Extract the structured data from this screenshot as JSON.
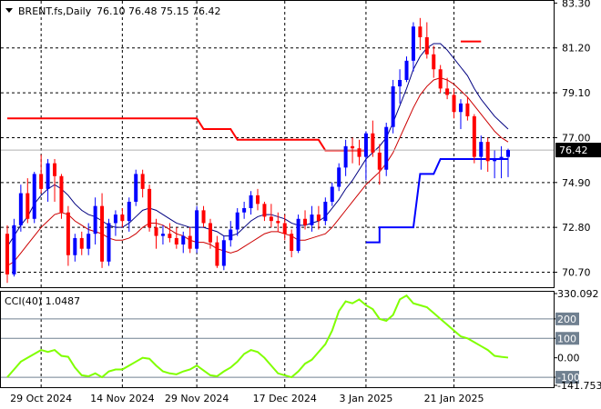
{
  "chart_data": [
    {
      "type": "candlestick",
      "title": "BRENT.fs,Daily",
      "ohlc_text": "76.10 76.48 75.15 76.42",
      "last_price": "76.42",
      "y_ticks": [
        "83.30",
        "81.20",
        "79.10",
        "77.00",
        "74.90",
        "72.80",
        "70.70"
      ],
      "y_tick_values": [
        83.3,
        81.2,
        79.1,
        77.0,
        74.9,
        72.8,
        70.7
      ],
      "ylim": [
        70.0,
        83.4
      ],
      "x_ticks": [
        "29 Oct 2024",
        "14 Nov 2024",
        "29 Nov 2024",
        "17 Dec 2024",
        "3 Jan 2025",
        "21 Jan 2025"
      ],
      "x_tick_index": [
        5,
        17,
        28,
        41,
        53,
        66
      ],
      "candles": [
        [
          72.5,
          72.9,
          70.2,
          70.6
        ],
        [
          70.6,
          73.2,
          70.5,
          72.9
        ],
        [
          72.9,
          74.8,
          72.6,
          74.4
        ],
        [
          74.4,
          75.1,
          73.0,
          73.2
        ],
        [
          73.2,
          75.4,
          73.0,
          75.3
        ],
        [
          75.3,
          76.2,
          74.4,
          74.6
        ],
        [
          74.6,
          76.0,
          74.0,
          75.8
        ],
        [
          75.8,
          76.0,
          74.0,
          75.2
        ],
        [
          75.2,
          75.3,
          73.2,
          73.5
        ],
        [
          73.5,
          73.8,
          71.0,
          71.5
        ],
        [
          71.5,
          72.5,
          71.2,
          72.3
        ],
        [
          72.3,
          72.6,
          71.5,
          71.8
        ],
        [
          71.8,
          73.0,
          71.5,
          72.5
        ],
        [
          72.5,
          74.2,
          72.0,
          73.8
        ],
        [
          73.8,
          74.4,
          70.9,
          71.2
        ],
        [
          71.2,
          73.2,
          71.0,
          73.0
        ],
        [
          73.0,
          73.6,
          72.4,
          73.4
        ],
        [
          73.4,
          73.7,
          72.8,
          73.1
        ],
        [
          73.1,
          74.2,
          72.6,
          74.0
        ],
        [
          74.0,
          75.5,
          73.8,
          75.3
        ],
        [
          75.3,
          75.5,
          74.2,
          74.6
        ],
        [
          74.6,
          74.8,
          72.6,
          72.8
        ],
        [
          72.8,
          73.2,
          71.8,
          72.4
        ],
        [
          72.4,
          72.9,
          72.0,
          72.5
        ],
        [
          72.5,
          73.0,
          72.1,
          72.3
        ],
        [
          72.3,
          72.8,
          71.8,
          72.0
        ],
        [
          72.0,
          72.6,
          71.6,
          72.4
        ],
        [
          72.4,
          72.8,
          71.6,
          71.8
        ],
        [
          71.8,
          73.8,
          71.6,
          73.6
        ],
        [
          73.6,
          73.8,
          72.8,
          73.0
        ],
        [
          73.0,
          73.2,
          71.8,
          72.1
        ],
        [
          72.1,
          72.4,
          70.9,
          71.0
        ],
        [
          71.0,
          72.4,
          70.8,
          72.2
        ],
        [
          72.2,
          73.1,
          71.9,
          72.7
        ],
        [
          72.7,
          73.7,
          72.4,
          73.5
        ],
        [
          73.5,
          74.0,
          73.2,
          73.7
        ],
        [
          73.7,
          74.5,
          73.4,
          74.3
        ],
        [
          74.3,
          74.6,
          73.6,
          73.9
        ],
        [
          73.9,
          74.0,
          73.1,
          73.3
        ],
        [
          73.3,
          73.9,
          72.8,
          73.1
        ],
        [
          73.1,
          73.5,
          72.6,
          73.0
        ],
        [
          73.0,
          73.4,
          72.2,
          72.5
        ],
        [
          72.5,
          72.7,
          71.4,
          71.7
        ],
        [
          71.7,
          73.4,
          71.6,
          73.2
        ],
        [
          73.2,
          73.6,
          72.7,
          72.9
        ],
        [
          72.9,
          73.8,
          72.6,
          73.4
        ],
        [
          73.4,
          73.8,
          72.7,
          73.1
        ],
        [
          73.1,
          74.2,
          72.9,
          74.0
        ],
        [
          74.0,
          74.9,
          73.8,
          74.7
        ],
        [
          74.7,
          75.8,
          74.5,
          75.6
        ],
        [
          75.6,
          76.9,
          75.2,
          76.6
        ],
        [
          76.6,
          77.0,
          75.8,
          76.5
        ],
        [
          76.5,
          76.9,
          75.7,
          76.1
        ],
        [
          76.1,
          77.3,
          75.0,
          77.2
        ],
        [
          77.2,
          77.8,
          76.1,
          76.3
        ],
        [
          76.3,
          76.7,
          74.8,
          75.5
        ],
        [
          75.5,
          77.7,
          75.2,
          77.5
        ],
        [
          77.5,
          79.7,
          77.2,
          79.4
        ],
        [
          79.4,
          80.2,
          78.6,
          79.7
        ],
        [
          79.7,
          80.8,
          79.6,
          80.6
        ],
        [
          80.6,
          82.4,
          80.1,
          82.2
        ],
        [
          82.2,
          82.6,
          81.1,
          81.7
        ],
        [
          81.7,
          82.4,
          80.7,
          80.9
        ],
        [
          80.9,
          81.3,
          79.8,
          80.2
        ],
        [
          80.2,
          80.4,
          79.1,
          79.3
        ],
        [
          79.3,
          79.8,
          78.8,
          79.0
        ],
        [
          79.0,
          79.3,
          77.9,
          78.2
        ],
        [
          78.2,
          78.8,
          77.4,
          78.6
        ],
        [
          78.6,
          78.9,
          77.8,
          78.0
        ],
        [
          78.0,
          78.1,
          75.8,
          76.1
        ],
        [
          76.1,
          77.1,
          75.5,
          76.8
        ],
        [
          76.8,
          77.0,
          75.4,
          75.9
        ],
        [
          75.9,
          76.4,
          75.1,
          76.0
        ],
        [
          76.0,
          76.6,
          75.1,
          76.1
        ],
        [
          76.1,
          76.48,
          75.15,
          76.42
        ]
      ],
      "ma_blue": [
        71.9,
        72.4,
        72.9,
        73.3,
        73.9,
        74.3,
        74.6,
        74.8,
        74.6,
        74.3,
        73.9,
        73.6,
        73.4,
        73.3,
        73.1,
        72.9,
        72.8,
        72.8,
        73.0,
        73.3,
        73.6,
        73.7,
        73.6,
        73.4,
        73.2,
        73.0,
        72.9,
        72.8,
        72.8,
        72.8,
        72.7,
        72.6,
        72.4,
        72.4,
        72.5,
        72.8,
        73.1,
        73.3,
        73.4,
        73.4,
        73.3,
        73.2,
        73.0,
        72.9,
        72.9,
        73.0,
        73.1,
        73.3,
        73.7,
        74.1,
        74.6,
        75.0,
        75.5,
        76.0,
        76.3,
        76.6,
        77.0,
        77.7,
        78.5,
        79.3,
        80.2,
        80.8,
        81.2,
        81.4,
        81.4,
        81.1,
        80.7,
        80.3,
        79.9,
        79.3,
        78.8,
        78.4,
        78.0,
        77.7,
        77.4
      ],
      "ma_red": [
        71.0,
        71.2,
        71.6,
        72.0,
        72.4,
        72.8,
        73.1,
        73.4,
        73.5,
        73.4,
        73.1,
        72.9,
        72.7,
        72.6,
        72.5,
        72.3,
        72.2,
        72.2,
        72.3,
        72.5,
        72.8,
        73.0,
        73.0,
        72.9,
        72.7,
        72.5,
        72.4,
        72.2,
        72.1,
        72.1,
        72.0,
        71.8,
        71.7,
        71.6,
        71.7,
        71.9,
        72.1,
        72.3,
        72.5,
        72.6,
        72.6,
        72.5,
        72.4,
        72.2,
        72.2,
        72.3,
        72.4,
        72.5,
        72.8,
        73.2,
        73.6,
        74.0,
        74.4,
        74.8,
        75.1,
        75.4,
        75.8,
        76.3,
        77.0,
        77.7,
        78.4,
        79.0,
        79.4,
        79.7,
        79.8,
        79.7,
        79.5,
        79.2,
        78.9,
        78.5,
        78.1,
        77.7,
        77.3,
        77.0,
        76.8
      ],
      "stop_red_upper": [
        {
          "from": 0,
          "to": 28,
          "value": 77.9
        },
        {
          "from": 29,
          "to": 33,
          "value": 77.4
        },
        {
          "from": 34,
          "to": 46,
          "value": 76.9
        },
        {
          "from": 47,
          "to": 53,
          "value": 76.4
        }
      ],
      "stop_red_late": [
        {
          "from": 67,
          "to": 70,
          "value": 81.5
        }
      ],
      "stop_blue": [
        {
          "from": 53,
          "to": 55,
          "value": 72.1
        },
        {
          "from": 55,
          "to": 60,
          "value": 72.8
        },
        {
          "from": 61,
          "to": 63,
          "value": 75.3
        },
        {
          "from": 64,
          "to": 74,
          "value": 76.0
        }
      ],
      "current_price_line": 76.42
    },
    {
      "type": "line",
      "title": "CCI(40) 1.0487",
      "y_ticks": [
        "330.092",
        "200",
        "100",
        "0.00",
        "-100",
        "-141.753"
      ],
      "y_tick_values": [
        330.092,
        200,
        100,
        0,
        -100,
        -141.753
      ],
      "ylim": [
        -141.753,
        330.092
      ],
      "level_lines": [
        200,
        100,
        -100
      ],
      "values": [
        -100,
        -60,
        -20,
        0,
        20,
        40,
        30,
        40,
        10,
        5,
        -50,
        -90,
        -95,
        -80,
        -100,
        -70,
        -60,
        -60,
        -40,
        -20,
        0,
        -5,
        -40,
        -70,
        -80,
        -85,
        -70,
        -60,
        -40,
        -65,
        -90,
        -95,
        -70,
        -50,
        -20,
        20,
        40,
        30,
        0,
        -40,
        -80,
        -90,
        -100,
        -70,
        -30,
        -10,
        30,
        70,
        140,
        240,
        290,
        280,
        300,
        270,
        250,
        200,
        190,
        220,
        300,
        320,
        280,
        270,
        260,
        230,
        200,
        170,
        140,
        110,
        100,
        80,
        60,
        40,
        10,
        5,
        1.0487
      ]
    }
  ],
  "colors": {
    "bull_candle": "#0000ff",
    "bear_candle": "#ff0000",
    "ma_blue": "#000080",
    "ma_red": "#cc0000",
    "stop_red": "#ff0000",
    "stop_blue": "#0000ff",
    "cci_line": "#80ff00",
    "grid": "#000000",
    "level_line": "#708090",
    "price_tag": "#000000"
  }
}
